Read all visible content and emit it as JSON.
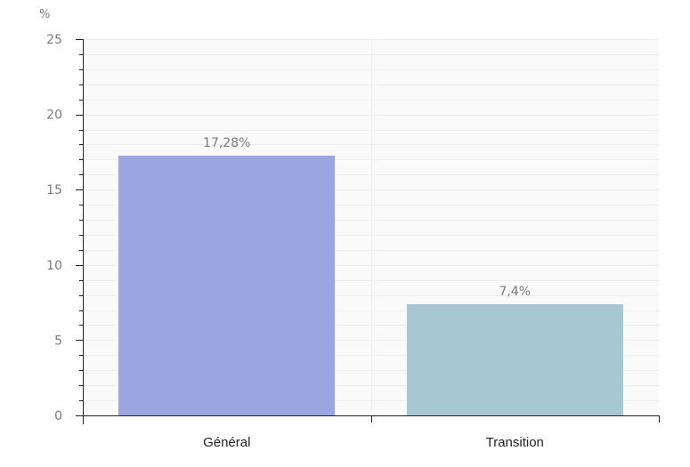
{
  "chart_data": {
    "type": "bar",
    "title": "",
    "xlabel": "",
    "ylabel": "%",
    "categories": [
      "Général",
      "Transition"
    ],
    "values": [
      17.28,
      7.4
    ],
    "value_labels": [
      "17,28%",
      "7,4%"
    ],
    "bar_colors": [
      "#9BA5E0",
      "#A7C8D2"
    ],
    "ylim": [
      0,
      25
    ],
    "yticks": [
      0,
      5,
      10,
      15,
      20,
      25
    ],
    "ytick_labels": [
      "0",
      "5",
      "10",
      "15",
      "20",
      "25"
    ],
    "grid": true,
    "legend": "none"
  },
  "colors": {
    "plot_background": "#FAFAFA",
    "grid": "#EEEEEE",
    "axis": "#222222"
  }
}
